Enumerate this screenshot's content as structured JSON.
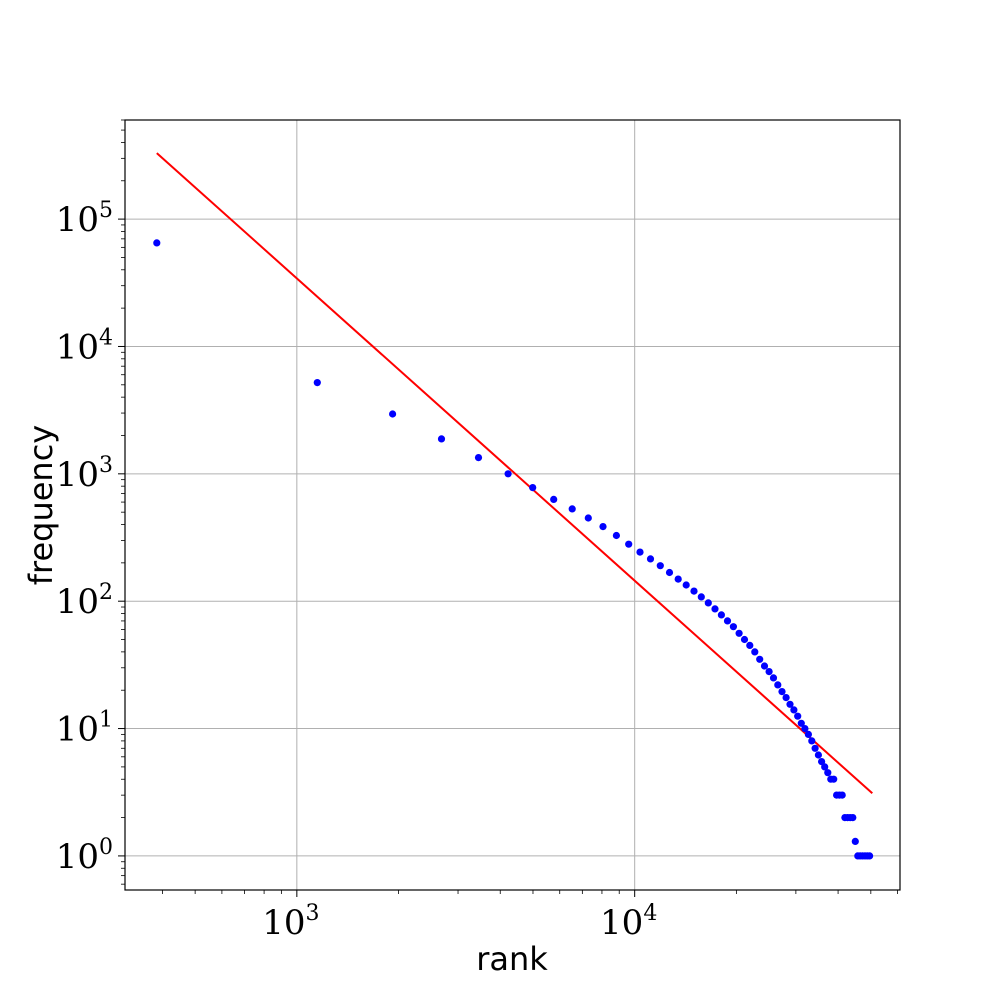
{
  "chart_data": {
    "type": "scatter",
    "xlabel": "rank",
    "ylabel": "frequency",
    "title": "",
    "x_scale": "log",
    "y_scale": "log",
    "xlim": [
      310,
      61000
    ],
    "ylim": [
      0.54,
      600000
    ],
    "grid": true,
    "x_ticks": [
      {
        "base": "10",
        "exp": "3",
        "value": 1000
      },
      {
        "base": "10",
        "exp": "4",
        "value": 10000
      }
    ],
    "y_ticks": [
      {
        "base": "10",
        "exp": "0",
        "value": 1
      },
      {
        "base": "10",
        "exp": "1",
        "value": 10
      },
      {
        "base": "10",
        "exp": "2",
        "value": 100
      },
      {
        "base": "10",
        "exp": "3",
        "value": 1000
      },
      {
        "base": "10",
        "exp": "4",
        "value": 10000
      },
      {
        "base": "10",
        "exp": "5",
        "value": 100000
      }
    ],
    "colors": {
      "points": "#0000ff",
      "fit_line": "#ff0000",
      "grid": "#b0b0b0"
    },
    "series": [
      {
        "type": "scatter",
        "points": [
          [
            385,
            65000
          ],
          [
            1150,
            5200
          ],
          [
            1920,
            2950
          ],
          [
            2680,
            1880
          ],
          [
            3450,
            1340
          ],
          [
            4220,
            1000
          ],
          [
            4990,
            780
          ],
          [
            5760,
            630
          ],
          [
            6530,
            530
          ],
          [
            7290,
            450
          ],
          [
            8060,
            385
          ],
          [
            8830,
            328
          ],
          [
            9600,
            280
          ],
          [
            10370,
            243
          ],
          [
            11140,
            215
          ],
          [
            11910,
            190
          ],
          [
            12680,
            168
          ],
          [
            13450,
            149
          ],
          [
            14210,
            134
          ],
          [
            14980,
            120
          ],
          [
            15750,
            108
          ],
          [
            16520,
            97
          ],
          [
            17290,
            87
          ],
          [
            18060,
            78
          ],
          [
            18830,
            70
          ],
          [
            19600,
            63
          ],
          [
            20370,
            56
          ],
          [
            21140,
            50
          ],
          [
            21910,
            45
          ],
          [
            22680,
            40
          ],
          [
            23450,
            35
          ],
          [
            24220,
            31
          ],
          [
            24990,
            28
          ],
          [
            25750,
            25
          ],
          [
            26520,
            22
          ],
          [
            27290,
            19.5
          ],
          [
            28060,
            17.5
          ],
          [
            28830,
            15.5
          ],
          [
            29600,
            14
          ],
          [
            30370,
            12.5
          ],
          [
            31140,
            11
          ],
          [
            31910,
            10
          ],
          [
            32680,
            9
          ],
          [
            33450,
            8
          ],
          [
            34210,
            7
          ],
          [
            34980,
            6.2
          ],
          [
            35750,
            5.5
          ],
          [
            36520,
            5
          ],
          [
            37290,
            4.5
          ],
          [
            38060,
            4
          ],
          [
            38830,
            4
          ],
          [
            39600,
            3
          ],
          [
            40370,
            3
          ],
          [
            41140,
            3
          ],
          [
            41910,
            2
          ],
          [
            42680,
            2
          ],
          [
            43450,
            2
          ],
          [
            44220,
            2
          ],
          [
            44990,
            1.3
          ],
          [
            45760,
            1
          ],
          [
            46520,
            1
          ],
          [
            47290,
            1
          ],
          [
            48060,
            1
          ],
          [
            48830,
            1
          ],
          [
            49600,
            1
          ]
        ]
      },
      {
        "type": "line",
        "points": [
          [
            385,
            330000
          ],
          [
            50500,
            3.1
          ]
        ]
      }
    ]
  }
}
